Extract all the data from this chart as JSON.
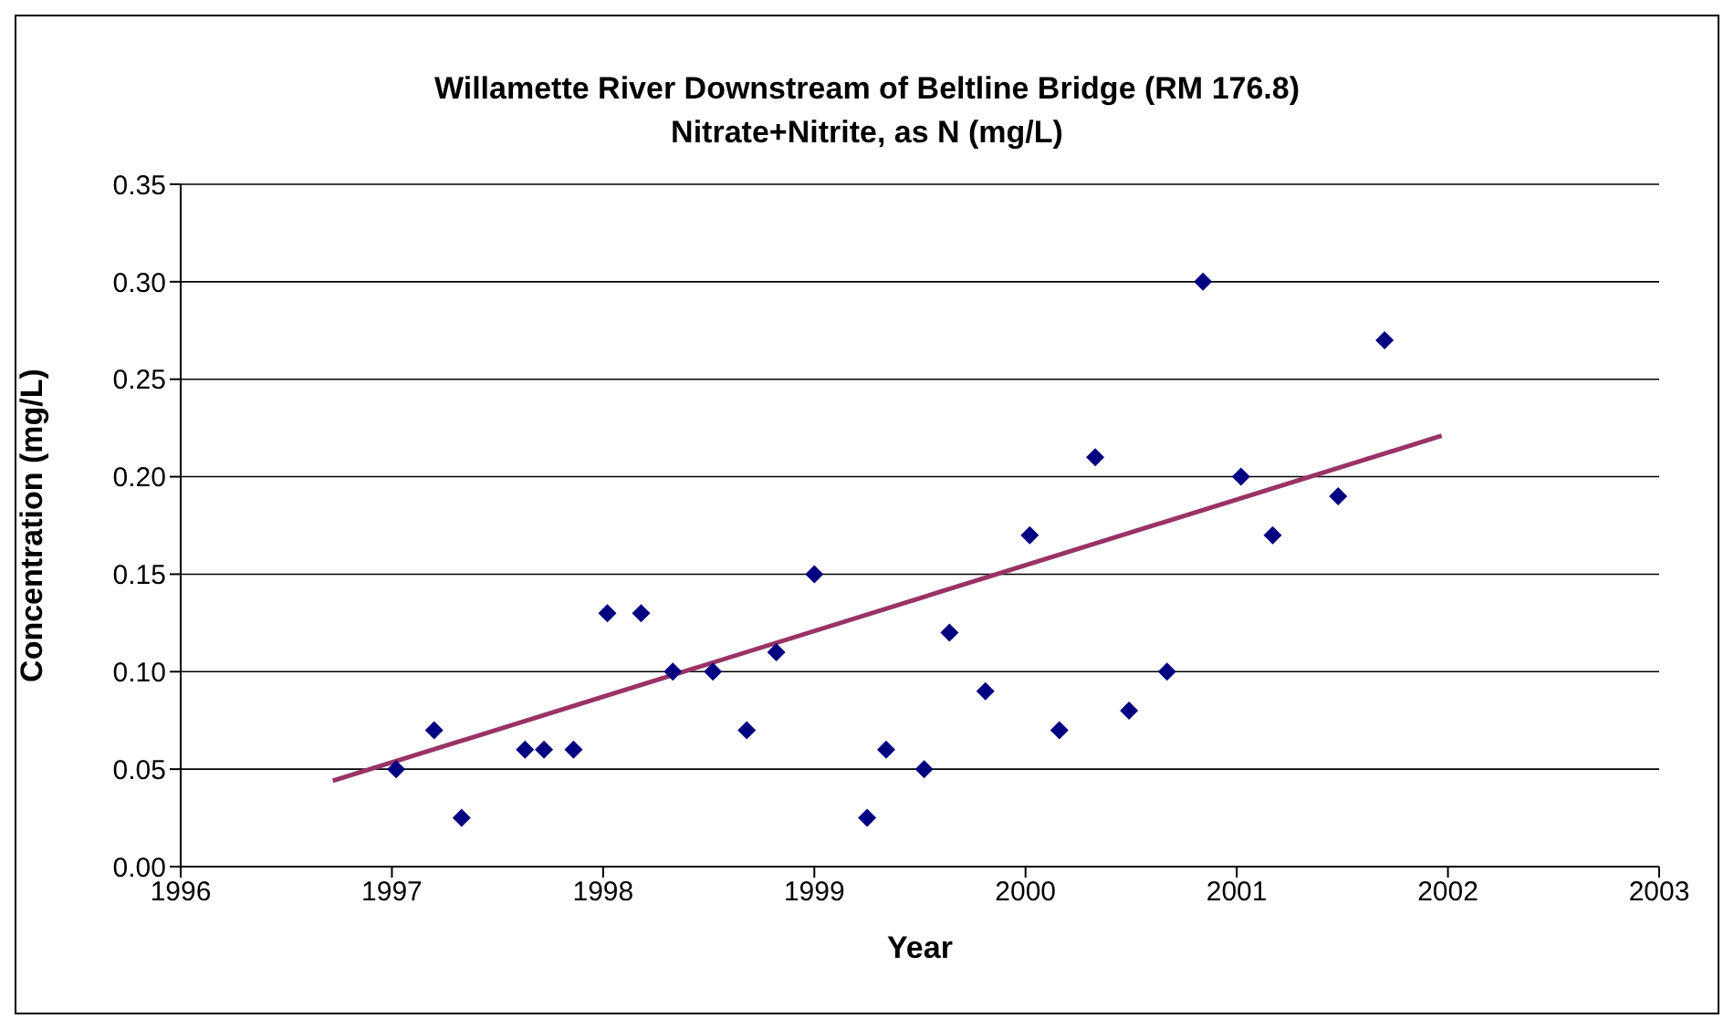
{
  "chart_data": {
    "type": "scatter",
    "title": "Willamette River Downstream of Beltline Bridge (RM 176.8)",
    "subtitle": "Nitrate+Nitrite, as N (mg/L)",
    "xlabel": "Year",
    "ylabel": "Concentration (mg/L)",
    "xlim": [
      1996,
      2003
    ],
    "xticks": [
      1996,
      1997,
      1998,
      1999,
      2000,
      2001,
      2002,
      2003
    ],
    "ylim": [
      0,
      0.35
    ],
    "yticks": [
      {
        "value": 0,
        "label": "0.00"
      },
      {
        "value": 0.05,
        "label": "0.05"
      },
      {
        "value": 0.1,
        "label": "0.10"
      },
      {
        "value": 0.15,
        "label": "0.15"
      },
      {
        "value": 0.2,
        "label": "0.20"
      },
      {
        "value": 0.25,
        "label": "0.25"
      },
      {
        "value": 0.3,
        "label": "0.30"
      },
      {
        "value": 0.35,
        "label": "0.35"
      }
    ],
    "grid": "y",
    "series": [
      {
        "color": "#000080",
        "marker": "diamond",
        "x": [
          1997.02,
          1997.2,
          1997.33,
          1997.63,
          1997.72,
          1997.86,
          1998.02,
          1998.18,
          1998.33,
          1998.52,
          1998.68,
          1998.82,
          1999.0,
          1999.25,
          1999.34,
          1999.52,
          1999.64,
          1999.81,
          2000.02,
          2000.16,
          2000.33,
          2000.49,
          2000.67,
          2000.84,
          2001.02,
          2001.17,
          2001.48,
          2001.7
        ],
        "values": [
          0.05,
          0.07,
          0.025,
          0.06,
          0.06,
          0.06,
          0.13,
          0.13,
          0.1,
          0.1,
          0.07,
          0.11,
          0.15,
          0.025,
          0.06,
          0.05,
          0.12,
          0.09,
          0.17,
          0.07,
          0.21,
          0.08,
          0.1,
          0.3,
          0.2,
          0.17,
          0.19,
          0.27
        ]
      },
      {
        "type": "line",
        "color": "#993366",
        "marker": "none",
        "line_style": "solid",
        "x": [
          1996.72,
          2001.97
        ],
        "values": [
          0.044,
          0.221
        ]
      }
    ]
  }
}
